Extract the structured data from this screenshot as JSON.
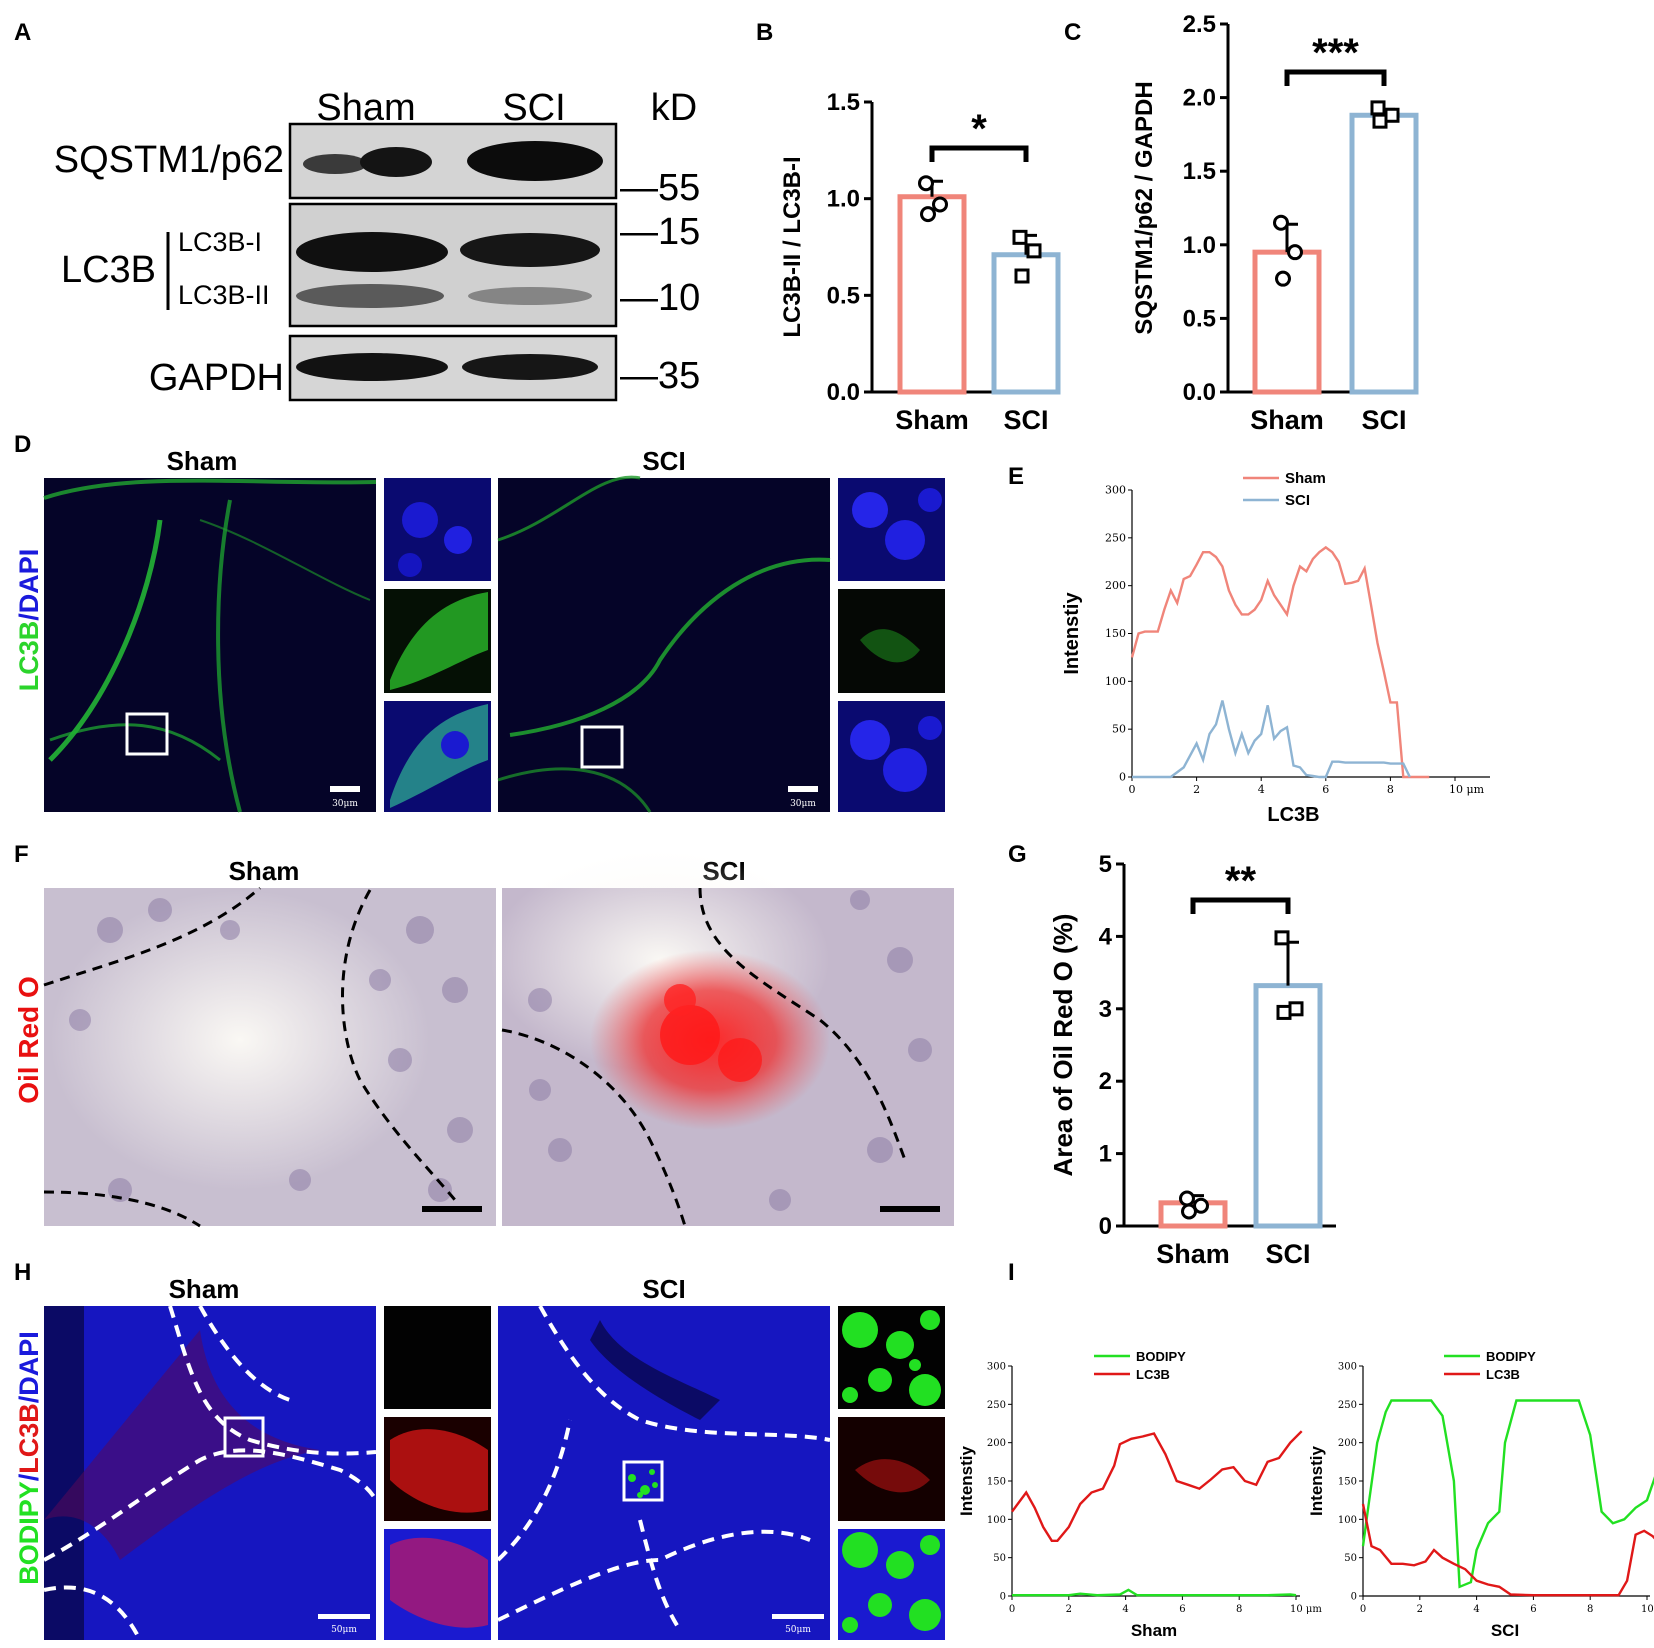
{
  "figure": {
    "panel_labels": [
      "A",
      "B",
      "C",
      "D",
      "E",
      "F",
      "G",
      "H",
      "I"
    ],
    "blot": {
      "groups": [
        "Sham",
        "SCI"
      ],
      "unit": "kD",
      "rows": [
        "SQSTM1/p62",
        "LC3B",
        "GAPDH"
      ],
      "lc3b_bands": [
        "LC3B-I",
        "LC3B-II"
      ],
      "markers": [
        "—55",
        "—15",
        "—10",
        "—35"
      ]
    },
    "panel_d": {
      "groups": [
        "Sham",
        "SCI"
      ],
      "stain_parts": [
        "LC3B",
        "/",
        "DAPI"
      ],
      "scalebar": "30μm"
    },
    "panel_f": {
      "groups": [
        "Sham",
        "SCI"
      ],
      "stain": "Oil Red O"
    },
    "panel_h": {
      "groups": [
        "Sham",
        "SCI"
      ],
      "stain_parts": [
        "BODIPY",
        "/",
        "LC3B",
        "/",
        "DAPI"
      ],
      "scalebar": "50μm"
    },
    "colors": {
      "sham": "#f0857a",
      "sci": "#8eb4d3",
      "bodipy": "#22e022",
      "lc3b_red": "#e01818",
      "dapi": "#1a1adc",
      "lc3b_green": "#2bd42b"
    }
  },
  "chart_data": [
    {
      "panel": "B",
      "type": "bar",
      "categories": [
        "Sham",
        "SCI"
      ],
      "values": [
        1.01,
        0.71
      ],
      "errors": [
        0.08,
        0.1
      ],
      "points": [
        [
          1.08,
          0.97,
          0.92
        ],
        [
          0.8,
          0.73,
          0.6
        ]
      ],
      "ylabel": "LC3B-II / LC3B-I",
      "ylim": [
        0,
        1.5
      ],
      "yticks": [
        "0.0",
        "0.5",
        "1.0",
        "1.5"
      ],
      "significance": "*"
    },
    {
      "panel": "C",
      "type": "bar",
      "categories": [
        "Sham",
        "SCI"
      ],
      "values": [
        0.95,
        1.88
      ],
      "errors": [
        0.19,
        0.04
      ],
      "points": [
        [
          1.15,
          0.95,
          0.77
        ],
        [
          1.93,
          1.88,
          1.84
        ]
      ],
      "ylabel": "SQSTM1/p62 / GAPDH",
      "ylim": [
        0,
        2.5
      ],
      "yticks": [
        "0.0",
        "0.5",
        "1.0",
        "1.5",
        "2.0",
        "2.5"
      ],
      "significance": "***"
    },
    {
      "panel": "E",
      "type": "line",
      "xlabel": "LC3B",
      "ylabel": "Intenstiy",
      "x_unit": "10 μm",
      "xlim": [
        0,
        10
      ],
      "ylim": [
        0,
        300
      ],
      "xticks": [
        "0",
        "2",
        "4",
        "6",
        "8"
      ],
      "yticks": [
        "0",
        "50",
        "100",
        "150",
        "200",
        "250",
        "300"
      ],
      "series": [
        {
          "name": "Sham",
          "color": "#f0857a",
          "x": [
            0,
            0.2,
            0.4,
            0.6,
            0.8,
            1.0,
            1.2,
            1.4,
            1.6,
            1.8,
            2.0,
            2.2,
            2.4,
            2.6,
            2.8,
            3.0,
            3.2,
            3.4,
            3.6,
            3.8,
            4.0,
            4.2,
            4.4,
            4.6,
            4.8,
            5.0,
            5.2,
            5.4,
            5.6,
            5.8,
            6.0,
            6.2,
            6.4,
            6.6,
            6.8,
            7.0,
            7.2,
            7.4,
            7.6,
            7.8,
            8.0,
            8.2,
            8.4,
            8.6,
            8.8,
            9.0,
            9.2
          ],
          "y": [
            125,
            150,
            152,
            152,
            152,
            175,
            195,
            182,
            207,
            210,
            222,
            235,
            235,
            230,
            220,
            195,
            180,
            170,
            170,
            175,
            185,
            205,
            190,
            180,
            170,
            200,
            220,
            215,
            228,
            235,
            240,
            235,
            225,
            202,
            203,
            205,
            218,
            180,
            140,
            110,
            78,
            78,
            0,
            0,
            0,
            0,
            0
          ]
        },
        {
          "name": "SCI",
          "color": "#8eb4d3",
          "x": [
            0,
            0.4,
            0.8,
            1.2,
            1.6,
            2.0,
            2.2,
            2.4,
            2.6,
            2.8,
            3.0,
            3.2,
            3.4,
            3.6,
            3.8,
            4.0,
            4.2,
            4.4,
            4.6,
            4.8,
            5.0,
            5.2,
            5.4,
            5.6,
            5.8,
            6.0,
            6.2,
            6.4,
            6.6,
            6.8,
            7.0,
            7.2,
            7.4,
            7.6,
            7.8,
            8.0,
            8.2,
            8.4,
            8.6
          ],
          "y": [
            0,
            0,
            0,
            0,
            10,
            35,
            18,
            45,
            55,
            80,
            50,
            25,
            45,
            25,
            38,
            45,
            75,
            40,
            48,
            52,
            12,
            10,
            2,
            1,
            0,
            0,
            16,
            16,
            15,
            15,
            15,
            15,
            15,
            15,
            15,
            14,
            14,
            14,
            0
          ]
        }
      ]
    },
    {
      "panel": "G",
      "type": "bar",
      "categories": [
        "Sham",
        "SCI"
      ],
      "values": [
        0.32,
        3.32
      ],
      "errors": [
        0.1,
        0.6
      ],
      "points": [
        [
          0.38,
          0.28,
          0.2
        ],
        [
          3.98,
          3.0,
          2.95
        ]
      ],
      "ylabel": "Area of Oil Red O (%)",
      "ylim": [
        0,
        5
      ],
      "yticks": [
        "0",
        "1",
        "2",
        "3",
        "4",
        "5"
      ],
      "significance": "**"
    },
    {
      "panel": "I-Sham",
      "type": "line",
      "xlabel": "Sham",
      "ylabel": "Intenstiy",
      "x_unit": "10 μm",
      "xlim": [
        0,
        10
      ],
      "ylim": [
        0,
        300
      ],
      "xticks": [
        "0",
        "2",
        "4",
        "6",
        "8"
      ],
      "yticks": [
        "0",
        "50",
        "100",
        "150",
        "200",
        "250",
        "300"
      ],
      "series": [
        {
          "name": "BODIPY",
          "color": "#22e022",
          "x": [
            0,
            1,
            2,
            2.4,
            3,
            3.8,
            4.1,
            4.4,
            5,
            6,
            7,
            8,
            9,
            9.8,
            10
          ],
          "y": [
            1,
            1,
            1,
            3,
            1,
            2,
            8,
            1,
            1,
            1,
            1,
            1,
            1,
            2,
            1
          ]
        },
        {
          "name": "LC3B",
          "color": "#e01818",
          "x": [
            0,
            0.5,
            0.8,
            1.1,
            1.4,
            1.6,
            2.0,
            2.4,
            2.8,
            3.2,
            3.6,
            3.8,
            4.2,
            4.6,
            5.0,
            5.4,
            5.8,
            6.2,
            6.6,
            7.0,
            7.4,
            7.8,
            8.2,
            8.6,
            9.0,
            9.4,
            9.8,
            10.2
          ],
          "y": [
            110,
            135,
            115,
            90,
            72,
            72,
            90,
            120,
            135,
            140,
            170,
            198,
            205,
            208,
            212,
            185,
            150,
            145,
            140,
            152,
            165,
            168,
            150,
            145,
            175,
            180,
            200,
            215
          ]
        }
      ]
    },
    {
      "panel": "I-SCI",
      "type": "line",
      "xlabel": "SCI",
      "ylabel": "Intenstiy",
      "x_unit": "10 μm",
      "xlim": [
        0,
        10
      ],
      "ylim": [
        0,
        300
      ],
      "xticks": [
        "0",
        "2",
        "4",
        "6",
        "8"
      ],
      "yticks": [
        "0",
        "50",
        "100",
        "150",
        "200",
        "250",
        "300"
      ],
      "series": [
        {
          "name": "BODIPY",
          "color": "#22e022",
          "x": [
            0,
            0.2,
            0.5,
            0.8,
            1.0,
            1.6,
            2.0,
            2.4,
            2.8,
            3.2,
            3.4,
            3.8,
            4.0,
            4.4,
            4.8,
            5.0,
            5.4,
            5.8,
            6.2,
            7.0,
            7.6,
            8.0,
            8.4,
            8.8,
            9.2,
            9.6,
            10.0,
            10.4
          ],
          "y": [
            65,
            120,
            200,
            240,
            255,
            255,
            255,
            255,
            235,
            150,
            12,
            18,
            60,
            95,
            110,
            200,
            255,
            255,
            255,
            255,
            255,
            210,
            110,
            95,
            100,
            115,
            125,
            168
          ]
        },
        {
          "name": "LC3B",
          "color": "#e01818",
          "x": [
            0,
            0.3,
            0.6,
            1.0,
            1.4,
            1.8,
            2.2,
            2.5,
            2.8,
            3.2,
            3.6,
            4.0,
            4.4,
            4.8,
            5.2,
            6.0,
            7.0,
            8.0,
            9.0,
            9.3,
            9.6,
            9.9,
            10.2,
            10.4
          ],
          "y": [
            120,
            65,
            60,
            42,
            42,
            40,
            45,
            60,
            50,
            42,
            35,
            20,
            15,
            12,
            2,
            1,
            1,
            1,
            1,
            20,
            80,
            85,
            78,
            70
          ]
        }
      ]
    }
  ]
}
